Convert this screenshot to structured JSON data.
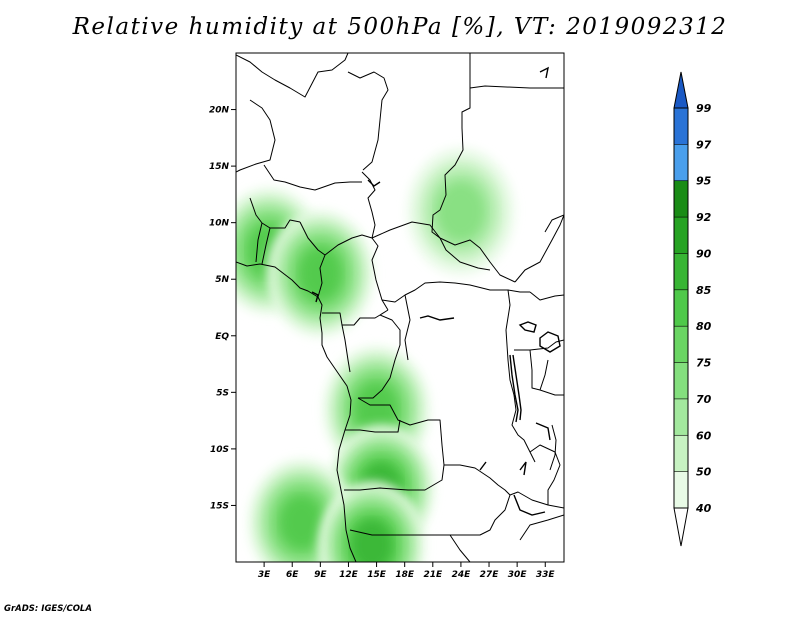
{
  "title": "Relative humidity at 500hPa [%], VT: 2019092312",
  "credit": "GrADS: IGES/COLA",
  "map": {
    "lat_labels": [
      "20N",
      "15N",
      "10N",
      "5N",
      "EQ",
      "5S",
      "10S",
      "15S"
    ],
    "lon_labels": [
      "3E",
      "6E",
      "9E",
      "12E",
      "15E",
      "18E",
      "21E",
      "24E",
      "27E",
      "30E",
      "33E"
    ]
  },
  "colorbar": {
    "levels": [
      "40",
      "50",
      "60",
      "70",
      "75",
      "80",
      "85",
      "90",
      "92",
      "95",
      "97",
      "99"
    ],
    "colors": [
      "#ffffff",
      "#e8fae6",
      "#c7f2c2",
      "#a3e89e",
      "#84df7e",
      "#6ad563",
      "#4fc94a",
      "#38b534",
      "#26a323",
      "#1a8c16",
      "#4a9fec",
      "#2a73d6",
      "#1a59c4"
    ]
  },
  "chart_data": {
    "type": "heatmap",
    "title": "Relative humidity at 500hPa [%], VT: 2019092312",
    "variable": "Relative humidity",
    "units": "%",
    "level": "500hPa",
    "valid_time": "2019092312",
    "lon_range": [
      0,
      35
    ],
    "lat_range": [
      -20,
      25
    ],
    "contour_levels": [
      40,
      50,
      60,
      70,
      75,
      80,
      85,
      90,
      92,
      95,
      97,
      99
    ],
    "humid_regions": [
      {
        "lon": 3.5,
        "lat": 7.5,
        "max_rh": 80
      },
      {
        "lon": 9,
        "lat": 5.5,
        "max_rh": 80
      },
      {
        "lon": 15,
        "lat": -6.5,
        "max_rh": 80
      },
      {
        "lon": 15.5,
        "lat": -13.5,
        "max_rh": 85
      },
      {
        "lon": 7,
        "lat": -16.5,
        "max_rh": 80
      },
      {
        "lon": 14.5,
        "lat": -18.5,
        "max_rh": 85
      },
      {
        "lon": 24,
        "lat": 11,
        "max_rh": 70
      }
    ]
  }
}
